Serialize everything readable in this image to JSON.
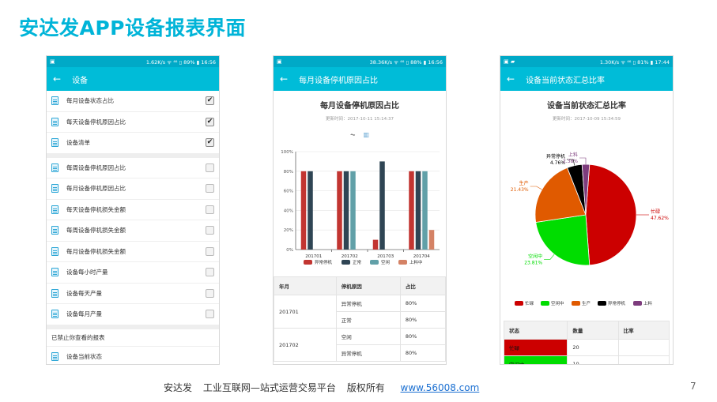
{
  "slide": {
    "title": "安达发APP设备报表界面",
    "footer_company": "安达发",
    "footer_desc": "工业互联网—站式运营交易平台",
    "footer_rights": "版权所有",
    "footer_link": "www.56008.com",
    "page_number": "7"
  },
  "phone1": {
    "status_left": "▣",
    "status_right": "1.62K/s ᯤ ⁴⁶ ▯ 89% ▮ 16:56",
    "appbar_title": "设备",
    "items_group1": [
      {
        "label": "每月设备状态占比",
        "checked": true
      },
      {
        "label": "每天设备停机原因占比",
        "checked": true
      },
      {
        "label": "设备清单",
        "checked": true
      }
    ],
    "items_group2": [
      {
        "label": "每周设备停机原因占比",
        "checked": false
      },
      {
        "label": "每月设备停机原因占比",
        "checked": false
      },
      {
        "label": "每天设备停机损失金额",
        "checked": false
      },
      {
        "label": "每周设备停机损失金额",
        "checked": false
      },
      {
        "label": "每月设备停机损失金额",
        "checked": false
      },
      {
        "label": "设备每小时产量",
        "checked": false
      },
      {
        "label": "设备每天产量",
        "checked": false
      },
      {
        "label": "设备每月产量",
        "checked": false
      }
    ],
    "disabled_label": "已禁止你查看的报表",
    "items_group3": [
      {
        "label": "设备当前状态"
      }
    ],
    "check_mark": "✔"
  },
  "phone2": {
    "status_left": "▣",
    "status_right": "38.36K/s ᯤ ⁴⁶ ▯ 88% ▮ 16:56",
    "appbar_title": "每月设备停机原因占比",
    "report_title": "每月设备停机原因占比",
    "report_time": "更新时间：2017-10-11 15:14:37",
    "table": {
      "headers": [
        "年月",
        "停机原因",
        "占比"
      ],
      "rows": [
        {
          "month": "201701",
          "reason": "异常停机",
          "ratio": "80%"
        },
        {
          "month": "",
          "reason": "正常",
          "ratio": "80%"
        },
        {
          "month": "201702",
          "reason": "空闲",
          "ratio": "80%"
        },
        {
          "month": "",
          "reason": "异常停机",
          "ratio": "80%"
        }
      ]
    }
  },
  "phone3": {
    "status_left": "▣ ▰",
    "status_right": "1.30K/s ᯤ ⁴⁶ ▯ 81% ▮ 17:44",
    "appbar_title": "设备当前状态汇总比率",
    "report_title": "设备当前状态汇总比率",
    "report_time": "更新时间：2017-10-09 15:34:59",
    "table": {
      "headers": [
        "状态",
        "数量",
        "比率"
      ],
      "rows": [
        {
          "status": "忙碌",
          "count": "20",
          "ratio": "",
          "color": "#cc0000"
        },
        {
          "status": "空闲中",
          "count": "10",
          "ratio": "",
          "color": "#00dd00"
        }
      ]
    }
  },
  "chart_data": [
    {
      "type": "bar",
      "categories": [
        "201701",
        "201702",
        "201703",
        "201704"
      ],
      "series": [
        {
          "name": "异常停机",
          "values": [
            80,
            80,
            10,
            80
          ],
          "color": "#c23531"
        },
        {
          "name": "正常",
          "values": [
            80,
            80,
            90,
            80
          ],
          "color": "#2f4554"
        },
        {
          "name": "空闲",
          "values": [
            0,
            80,
            0,
            80
          ],
          "color": "#61a0a8"
        },
        {
          "name": "上料中",
          "values": [
            0,
            0,
            0,
            20
          ],
          "color": "#d48265"
        }
      ],
      "ylim": [
        0,
        100
      ],
      "yticks": [
        "0%",
        "20%",
        "40%",
        "60%",
        "80%",
        "100%"
      ],
      "legend_position": "bottom",
      "grid": true
    },
    {
      "type": "pie",
      "slices": [
        {
          "name": "忙碌",
          "value": 47.62,
          "label": "47.62%",
          "color": "#cc0000"
        },
        {
          "name": "空闲中",
          "value": 23.81,
          "label": "23.81%",
          "color": "#00dd00"
        },
        {
          "name": "生产",
          "value": 21.43,
          "label": "21.43%",
          "color": "#e05a00"
        },
        {
          "name": "异常停机",
          "value": 4.76,
          "label": "4.76%",
          "color": "#000000"
        },
        {
          "name": "上料",
          "value": 2.38,
          "label": "2.38%",
          "color": "#7d3c7d"
        }
      ],
      "legend_position": "bottom"
    }
  ]
}
